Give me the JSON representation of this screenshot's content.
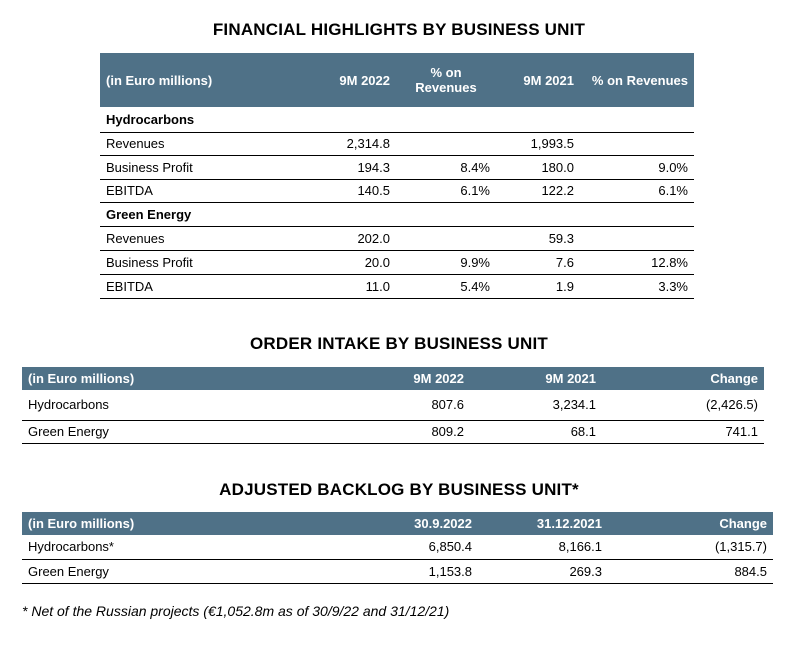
{
  "fin": {
    "title": "FINANCIAL HIGHLIGHTS BY BUSINESS UNIT",
    "headers": [
      "(in Euro millions)",
      "9M 2022",
      "% on Revenues",
      "9M 2021",
      "% on Revenues"
    ],
    "sections": [
      {
        "name": "Hydrocarbons",
        "rows": [
          [
            "Revenues",
            "2,314.8",
            "",
            "1,993.5",
            ""
          ],
          [
            "Business Profit",
            "194.3",
            "8.4%",
            "180.0",
            "9.0%"
          ],
          [
            "EBITDA",
            "140.5",
            "6.1%",
            "122.2",
            "6.1%"
          ]
        ]
      },
      {
        "name": "Green Energy",
        "rows": [
          [
            "Revenues",
            "202.0",
            "",
            "59.3",
            ""
          ],
          [
            "Business Profit",
            "20.0",
            "9.9%",
            "7.6",
            "12.8%"
          ],
          [
            "EBITDA",
            "11.0",
            "5.4%",
            "1.9",
            "3.3%"
          ]
        ]
      }
    ]
  },
  "order": {
    "title": "ORDER INTAKE BY BUSINESS UNIT",
    "headers": [
      "(in Euro millions)",
      "9M 2022",
      "9M 2021",
      "Change"
    ],
    "rows": [
      [
        "Hydrocarbons",
        "807.6",
        "3,234.1",
        "(2,426.5)"
      ],
      [
        "Green Energy",
        "809.2",
        "68.1",
        "741.1"
      ]
    ]
  },
  "backlog": {
    "title": "ADJUSTED BACKLOG BY BUSINESS UNIT*",
    "headers": [
      "(in Euro millions)",
      "30.9.2022",
      "31.12.2021",
      "Change"
    ],
    "rows": [
      [
        "Hydrocarbons*",
        "6,850.4",
        "8,166.1",
        "(1,315.7)"
      ],
      [
        "Green Energy",
        "1,153.8",
        "269.3",
        "884.5"
      ]
    ]
  },
  "footnote": "* Net of the Russian projects (€1,052.8m as of 30/9/22 and 31/12/21)",
  "colors": {
    "header_bg": "#4f7187",
    "header_text": "#ffffff"
  }
}
